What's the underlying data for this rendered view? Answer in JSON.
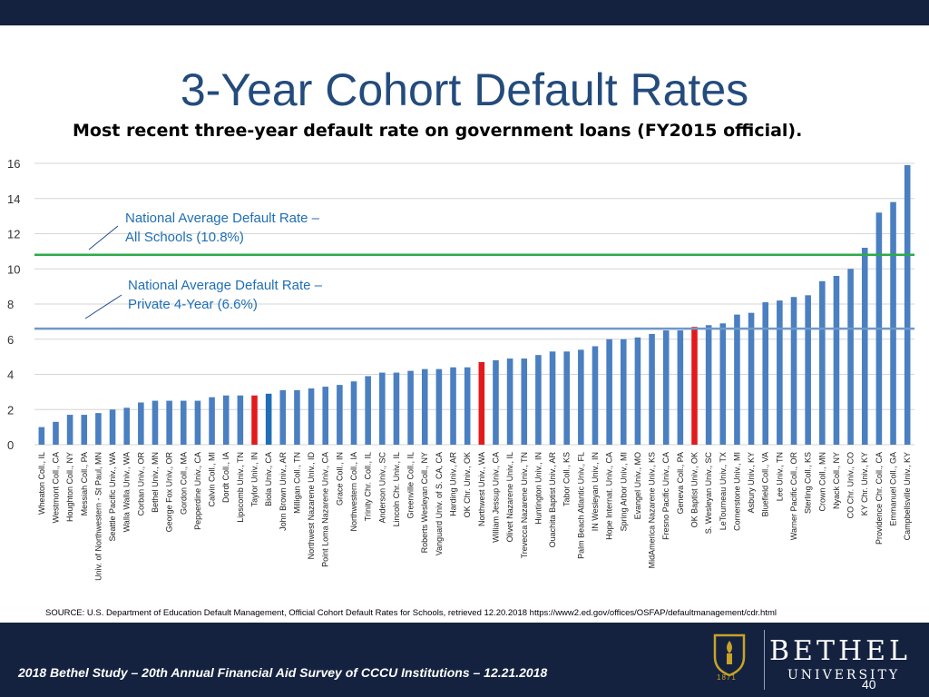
{
  "header": {
    "title": "3-Year Cohort Default Rates",
    "subtitle": "Most recent three-year default rate on government loans (FY2015 official)."
  },
  "chart_data": {
    "type": "bar",
    "ylim": [
      0,
      16
    ],
    "yticks": [
      0,
      2,
      4,
      6,
      8,
      10,
      12,
      14,
      16
    ],
    "grid": true,
    "categories": [
      "Wheaton Coll., IL",
      "Westmont Coll., CA",
      "Houghton Coll., NY",
      "Messiah Coll., PA",
      "Univ. of Northwestern - St Paul, MN",
      "Seattle Pacific Univ., WA",
      "Walla Walla Univ., WA",
      "Corban Univ., OR",
      "Bethel Univ., MN",
      "George Fox Univ., OR",
      "Gordon Coll., MA",
      "Pepperdine Univ., CA",
      "Calvin Coll., MI",
      "Dordt Coll., IA",
      "Lipscomb Univ., TN",
      "Taylor Univ., IN",
      "Biola Univ., CA",
      "John Brown Univ., AR",
      "Milligan Coll., TN",
      "Northwest Nazarene Univ., ID",
      "Point Loma Nazarene Univ., CA",
      "Grace Coll., IN",
      "Northwestern Coll., IA",
      "Trinity Chr. Coll., IL",
      "Anderson Univ., SC",
      "Lincoln Chr. Univ., IL",
      "Greenville Coll., IL",
      "Roberts Wesleyan Coll., NY",
      "Vanguard Univ. of S. CA, CA",
      "Harding Univ., AR",
      "OK Chr. Univ., OK",
      "Northwest Univ., WA",
      "William Jessup Univ., CA",
      "Olivet Nazarene Univ., IL",
      "Trevecca Nazarene Univ., TN",
      "Huntington Univ., IN",
      "Ouachita Baptist Univ., AR",
      "Tabor Coll., KS",
      "Palm Beach Atlantic Univ., FL",
      "IN Wesleyan Univ., IN",
      "Hope Internat. Univ., CA",
      "Spring Arbor Univ., MI",
      "Evangel Univ., MO",
      "MidAmerica Nazarene Univ., KS",
      "Fresno Pacific Univ., CA",
      "Geneva Coll., PA",
      "OK Baptist Univ., OK",
      "S. Wesleyan Univ., SC",
      "LeTourneau Univ., TX",
      "Cornerstone Univ., MI",
      "Asbury Univ., KY",
      "Bluefield Coll., VA",
      "Lee Univ., TN",
      "Warner Pacific Coll., OR",
      "Sterling Coll., KS",
      "Crown Coll., MN",
      "Nyack Coll., NY",
      "CO Chr. Univ., CO",
      "KY Chr. Univ., KY",
      "Providence Chr. Coll., CA",
      "Emmanuel Coll., GA",
      "Campbellsville Univ., KY"
    ],
    "values": [
      1.0,
      1.3,
      1.7,
      1.7,
      1.8,
      2.0,
      2.1,
      2.4,
      2.5,
      2.5,
      2.5,
      2.5,
      2.7,
      2.8,
      2.8,
      2.8,
      2.9,
      3.1,
      3.1,
      3.2,
      3.3,
      3.4,
      3.6,
      3.9,
      4.1,
      4.1,
      4.2,
      4.3,
      4.3,
      4.4,
      4.4,
      4.7,
      4.8,
      4.9,
      4.9,
      5.1,
      5.3,
      5.3,
      5.4,
      5.6,
      6.0,
      6.0,
      6.1,
      6.3,
      6.5,
      6.5,
      6.7,
      6.8,
      6.9,
      7.4,
      7.5,
      8.1,
      8.2,
      8.4,
      8.5,
      9.3,
      9.6,
      10.0,
      11.2,
      13.2,
      13.8,
      15.9
    ],
    "highlight": [
      {
        "category": "Taylor Univ., IN",
        "color": "#e31a1c"
      },
      {
        "category": "Biola Univ., CA",
        "color": "#1f6fb5"
      },
      {
        "category": "Northwest Univ., WA",
        "color": "#e31a1c"
      },
      {
        "category": "OK Baptist Univ., OK",
        "color": "#e31a1c"
      }
    ],
    "reference_lines": [
      {
        "value": 10.8,
        "label_line1": "National Average Default Rate –",
        "label_line2": "All Schools (10.8%)",
        "color": "#2eaa4a"
      },
      {
        "value": 6.6,
        "label_line1": "National Average Default Rate –",
        "label_line2": "Private 4-Year (6.6%)",
        "color": "#6f98c8"
      }
    ],
    "bar_color": "#4a7fc1"
  },
  "source_text": "SOURCE:  U.S. Department of Education Default Management, Official Cohort Default Rates for Schools, retrieved 12.20.2018 https://www2.ed.gov/offices/OSFAP/defaultmanagement/cdr.html",
  "footer": {
    "text": "2018 Bethel Study – 20th Annual Financial Aid Survey of CCCU Institutions – 12.21.2018",
    "page": "40",
    "logo_name": "BETHEL",
    "logo_sub": "UNIVERSITY",
    "logo_year": "1871",
    "logo_icon": "torch-shield-icon"
  }
}
